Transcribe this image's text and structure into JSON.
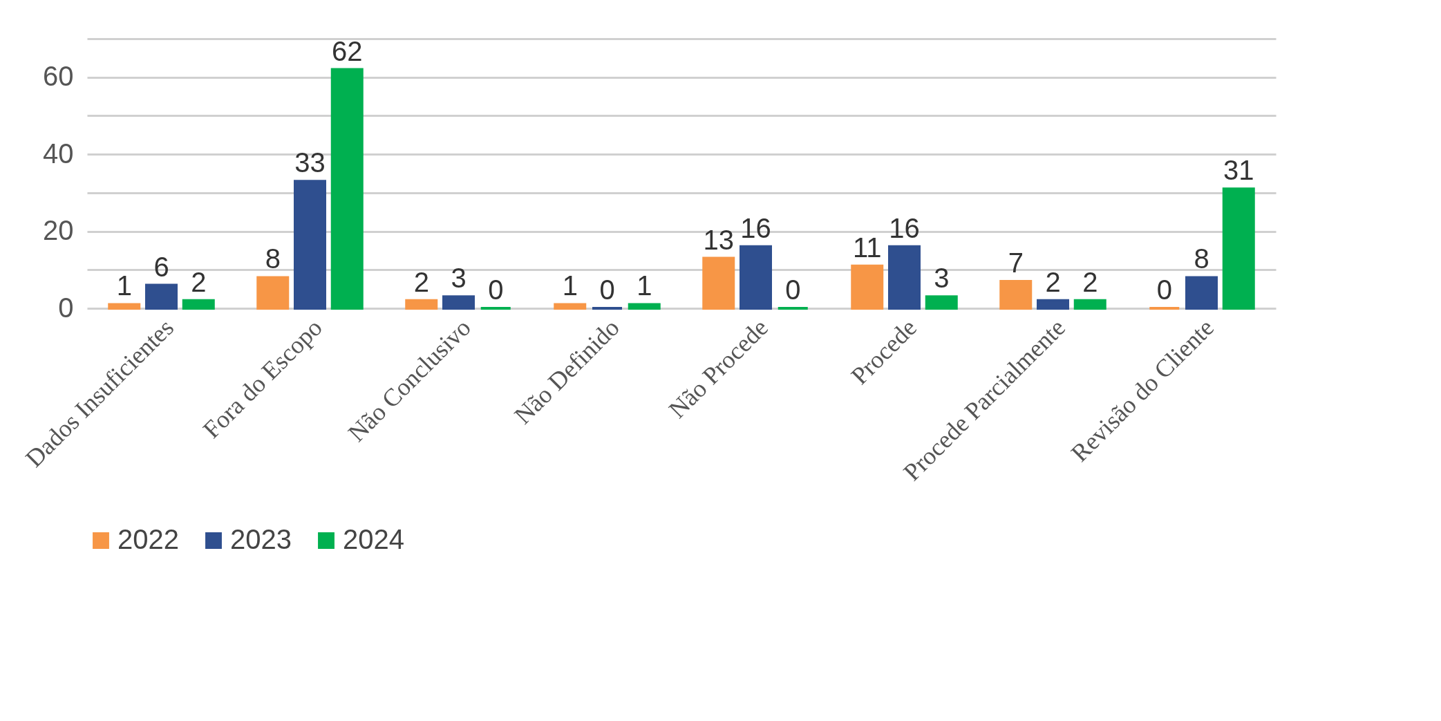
{
  "chart_data": {
    "type": "bar",
    "categories": [
      "Dados Insuficientes",
      "Fora do Escopo",
      "Não Conclusivo",
      "Não Definido",
      "Não Procede",
      "Procede",
      "Procede Parcialmente",
      "Revisão do Cliente"
    ],
    "series": [
      {
        "name": "2022",
        "color": "#f79646",
        "values": [
          1,
          8,
          2,
          1,
          13,
          11,
          7,
          0
        ]
      },
      {
        "name": "2023",
        "color": "#2f4f8f",
        "values": [
          6,
          33,
          3,
          0,
          16,
          16,
          2,
          8
        ]
      },
      {
        "name": "2024",
        "color": "#00b050",
        "values": [
          2,
          62,
          0,
          1,
          0,
          3,
          2,
          31
        ]
      }
    ],
    "ylim": [
      0,
      70
    ],
    "yticks": [
      0,
      {
        "value": 10,
        "label": null
      },
      20,
      {
        "value": 30,
        "label": null
      },
      40,
      {
        "value": 50,
        "label": null
      },
      60,
      {
        "value": 70,
        "label": null
      }
    ],
    "grid": "y",
    "data_labels": true,
    "legend": "bottom"
  }
}
